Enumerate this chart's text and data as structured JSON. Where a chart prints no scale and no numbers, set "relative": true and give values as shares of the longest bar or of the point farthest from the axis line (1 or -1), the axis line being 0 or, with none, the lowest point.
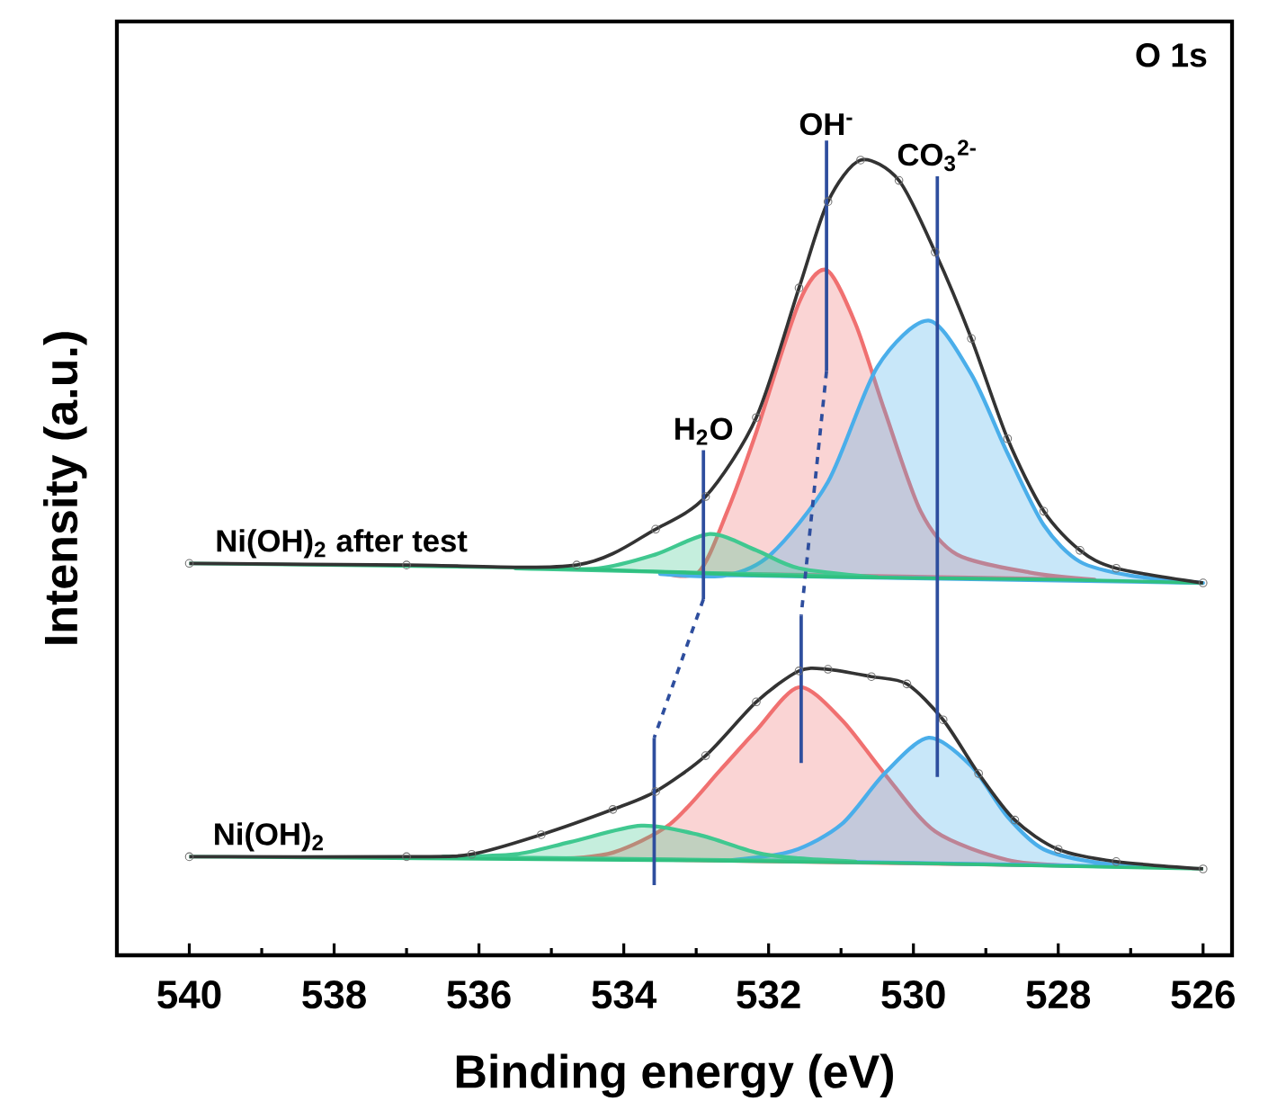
{
  "chart_data": {
    "type": "line",
    "relative": true,
    "xlabel": "Binding energy (eV)",
    "ylabel": "Intensity (a.u.)",
    "xlim": [
      541,
      525.6
    ],
    "xticks": [
      540,
      {
        "value": 539,
        "label": null
      },
      538,
      {
        "value": 537,
        "label": null
      },
      536,
      {
        "value": 535,
        "label": null
      },
      534,
      {
        "value": 533,
        "label": null
      },
      532,
      {
        "value": 531,
        "label": null
      },
      530,
      {
        "value": 529,
        "label": null
      },
      528,
      {
        "value": 527,
        "label": null
      },
      526
    ],
    "series": [
      {
        "type": "area",
        "color": "#f07070",
        "x": [
          533.5,
          532.97,
          532.57,
          532.17,
          531.58,
          531.2,
          530.8,
          530.4,
          529.9,
          529.4,
          528.4,
          527.5
        ],
        "values": [
          0.47,
          0.47,
          0.545,
          0.642,
          0.801,
          0.841,
          0.775,
          0.669,
          0.545,
          0.492,
          0.47,
          0.461
        ]
      },
      {
        "type": "area",
        "color": "#4aaeea",
        "x": [
          533.5,
          532.6,
          531.97,
          531.18,
          530.5,
          529.79,
          529.2,
          528.7,
          528.2,
          527.7,
          527.0,
          526.0
        ],
        "values": [
          0.468,
          0.466,
          0.492,
          0.581,
          0.722,
          0.779,
          0.713,
          0.616,
          0.528,
          0.483,
          0.466,
          0.457
        ]
      },
      {
        "type": "area",
        "color": "#40c890",
        "x": [
          535.5,
          534.35,
          533.56,
          532.81,
          532.17,
          531.58,
          530.5
        ],
        "values": [
          0.475,
          0.475,
          0.492,
          0.517,
          0.497,
          0.475,
          0.464
        ]
      },
      {
        "color": "#30c080",
        "x": [
          540,
          535,
          532,
          530,
          528,
          526
        ],
        "values": [
          0.481,
          0.475,
          0.466,
          0.463,
          0.461,
          0.457
        ]
      },
      {
        "type": "scatter",
        "marker": "circle",
        "color": "#707070",
        "x": [
          540,
          537,
          534.65,
          533.56,
          532.87,
          532.17,
          531.58,
          531.18,
          530.73,
          530.2,
          529.7,
          529.2,
          528.7,
          528.2,
          527.7,
          527.2,
          526
        ],
        "values": [
          0.481,
          0.479,
          0.479,
          0.523,
          0.563,
          0.66,
          0.819,
          0.925,
          0.976,
          0.951,
          0.863,
          0.757,
          0.634,
          0.545,
          0.497,
          0.475,
          0.457
        ]
      },
      {
        "color": "#333333",
        "x": [
          540,
          537,
          534.65,
          533.56,
          532.87,
          532.17,
          531.58,
          531.18,
          530.73,
          530.2,
          529.7,
          529.2,
          528.7,
          528.2,
          527.7,
          527.2,
          526
        ],
        "values": [
          0.481,
          0.479,
          0.479,
          0.523,
          0.563,
          0.66,
          0.819,
          0.925,
          0.976,
          0.951,
          0.863,
          0.757,
          0.634,
          0.545,
          0.497,
          0.475,
          0.457
        ]
      },
      {
        "type": "area",
        "color": "#f07070",
        "x": [
          534.8,
          534.15,
          533.36,
          532.67,
          532.17,
          531.58,
          530.99,
          530.4,
          529.7,
          528.7,
          527.8
        ],
        "values": [
          0.119,
          0.126,
          0.161,
          0.227,
          0.276,
          0.329,
          0.289,
          0.223,
          0.152,
          0.117,
          0.11
        ]
      },
      {
        "type": "area",
        "color": "#4aaeea",
        "x": [
          532.5,
          531.67,
          530.99,
          530.4,
          529.79,
          529.2,
          528.7,
          528.2,
          527.4,
          526.5
        ],
        "values": [
          0.117,
          0.128,
          0.161,
          0.223,
          0.267,
          0.232,
          0.17,
          0.13,
          0.113,
          0.108
        ]
      },
      {
        "type": "area",
        "color": "#40c890",
        "x": [
          536.5,
          535.5,
          534.74,
          533.76,
          532.97,
          532.17,
          531.58,
          530.8
        ],
        "values": [
          0.121,
          0.124,
          0.139,
          0.159,
          0.148,
          0.126,
          0.119,
          0.115
        ]
      },
      {
        "color": "#30c080",
        "x": [
          540,
          534,
          530,
          526
        ],
        "values": [
          0.121,
          0.117,
          0.113,
          0.106
        ]
      },
      {
        "type": "scatter",
        "marker": "circle",
        "color": "#707070",
        "x": [
          540,
          537,
          536.1,
          535.14,
          534.15,
          533.56,
          532.87,
          532.17,
          531.58,
          531.18,
          530.58,
          530.09,
          529.59,
          529.1,
          528.6,
          528.0,
          527.2,
          526
        ],
        "values": [
          0.121,
          0.121,
          0.124,
          0.148,
          0.179,
          0.201,
          0.245,
          0.311,
          0.349,
          0.351,
          0.342,
          0.333,
          0.289,
          0.223,
          0.166,
          0.13,
          0.115,
          0.106
        ]
      },
      {
        "color": "#333333",
        "x": [
          540,
          537,
          536.1,
          535.14,
          534.15,
          533.56,
          532.87,
          532.17,
          531.58,
          531.18,
          530.58,
          530.09,
          529.59,
          529.1,
          528.6,
          528.0,
          527.2,
          526
        ],
        "values": [
          0.121,
          0.121,
          0.124,
          0.148,
          0.179,
          0.201,
          0.245,
          0.311,
          0.349,
          0.351,
          0.342,
          0.333,
          0.289,
          0.223,
          0.166,
          0.13,
          0.115,
          0.106
        ]
      },
      {
        "type": "line",
        "color": "#2e4e9e",
        "line_style": "solid",
        "x": [
          532.9,
          532.9
        ],
        "values": [
          0.62,
          0.437
        ]
      },
      {
        "type": "line",
        "color": "#2e4e9e",
        "line_style": "solid",
        "x": [
          531.2,
          531.2
        ],
        "values": [
          1.0,
          0.717
        ]
      },
      {
        "type": "line",
        "color": "#2e4e9e",
        "line_style": "solid",
        "x": [
          529.67,
          529.67
        ],
        "values": [
          0.956,
          0.219
        ]
      },
      {
        "type": "line",
        "color": "#2e4e9e",
        "line_style": "solid",
        "x": [
          531.55,
          531.55
        ],
        "values": [
          0.417,
          0.236
        ]
      },
      {
        "type": "line",
        "color": "#2e4e9e",
        "line_style": "solid",
        "x": [
          533.58,
          533.58
        ],
        "values": [
          0.267,
          0.086
        ]
      },
      {
        "type": "line",
        "color": "#2e4e9e",
        "line_style": "dashed",
        "x": [
          532.9,
          533.58
        ],
        "values": [
          0.437,
          0.267
        ]
      },
      {
        "type": "line",
        "color": "#2e4e9e",
        "line_style": "dashed",
        "x": [
          531.2,
          531.55
        ],
        "values": [
          0.717,
          0.417
        ]
      }
    ],
    "annotations": [
      "O 1s",
      {
        "text": "H$_{2}$O",
        "x": 532.9,
        "y": 0.62
      },
      {
        "text": "OH$^{-}$",
        "x": 531.2,
        "y": 1.0
      },
      {
        "text": "CO$_{3}$$^{2-}$",
        "x": 529.67,
        "y": 0.956
      },
      {
        "text": "Ni(OH)$_{2}$  after test",
        "x": 537.9,
        "y": 0.481
      },
      {
        "text": "Ni(OH)$_{2}$",
        "x": 538.9,
        "y": 0.121
      }
    ]
  }
}
